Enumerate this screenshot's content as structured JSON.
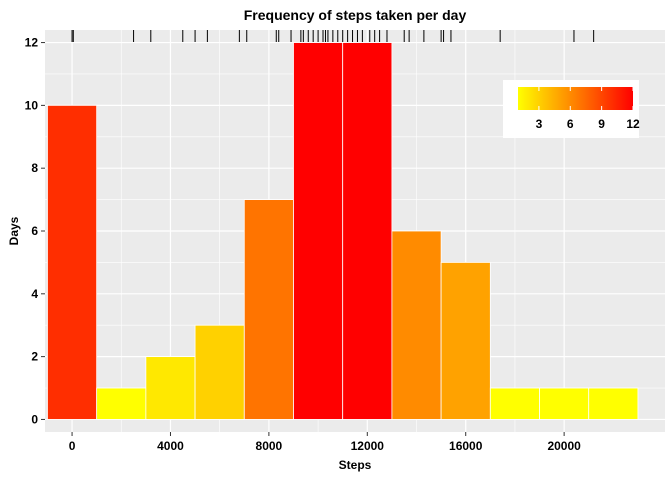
{
  "chart_data": {
    "type": "histogram",
    "title": "Frequency of steps taken per day",
    "xlabel": "Steps",
    "ylabel": "Days",
    "xlim": [
      -1100,
      24100
    ],
    "ylim": [
      -0.4,
      12.4
    ],
    "bin_width": 2000,
    "bins": [
      {
        "start": -1000,
        "end": 1000,
        "count": 10
      },
      {
        "start": 1000,
        "end": 3000,
        "count": 1
      },
      {
        "start": 3000,
        "end": 5000,
        "count": 2
      },
      {
        "start": 5000,
        "end": 7000,
        "count": 3
      },
      {
        "start": 7000,
        "end": 9000,
        "count": 7
      },
      {
        "start": 9000,
        "end": 11000,
        "count": 12
      },
      {
        "start": 11000,
        "end": 13000,
        "count": 12
      },
      {
        "start": 13000,
        "end": 15000,
        "count": 6
      },
      {
        "start": 15000,
        "end": 17000,
        "count": 5
      },
      {
        "start": 17000,
        "end": 19000,
        "count": 1
      },
      {
        "start": 19000,
        "end": 21000,
        "count": 1
      },
      {
        "start": 21000,
        "end": 23000,
        "count": 1
      }
    ],
    "x_ticks": [
      0,
      4000,
      8000,
      12000,
      16000,
      20000
    ],
    "x_tick_labels": [
      "0",
      "4000",
      "8000",
      "12000",
      "16000",
      "20000"
    ],
    "y_ticks": [
      0,
      2,
      4,
      6,
      8,
      10,
      12
    ],
    "y_tick_labels": [
      "0",
      "2",
      "4",
      "6",
      "8",
      "10",
      "12"
    ],
    "rug_values": [
      0,
      50,
      2500,
      3200,
      4500,
      5000,
      5500,
      6800,
      7100,
      8300,
      8400,
      8900,
      9300,
      9400,
      9600,
      9800,
      10000,
      10200,
      10300,
      10400,
      10600,
      10800,
      11000,
      11200,
      11400,
      11600,
      11800,
      12100,
      12300,
      12500,
      12800,
      13500,
      13700,
      14300,
      15000,
      15100,
      15400,
      17400,
      20400,
      21200
    ],
    "color_scale": {
      "low_color": "#FFFF00",
      "high_color": "#FF0000",
      "min": 1,
      "max": 12,
      "legend_ticks": [
        3,
        6,
        9,
        12
      ],
      "legend_labels": [
        "3",
        "6",
        "9",
        "12"
      ],
      "legend_position": "top-right"
    },
    "panel_background": "#EBEBEB",
    "grid": true
  }
}
